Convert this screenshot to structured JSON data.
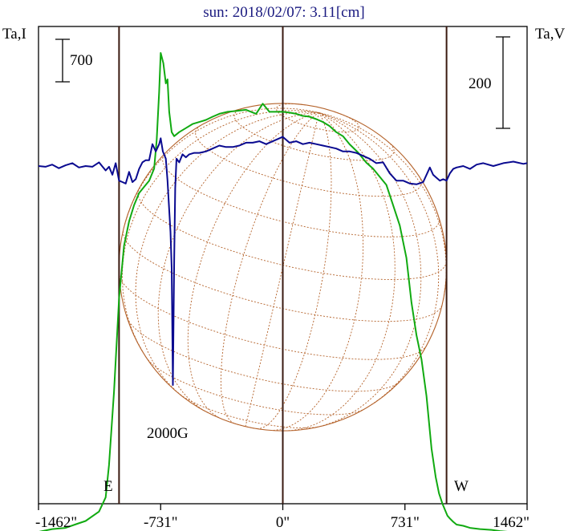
{
  "chart_data": {
    "type": "line",
    "title": "sun: 2018/02/07: 3.11[cm]",
    "left_axis_label": "Ta,I",
    "right_axis_label": "Ta,V",
    "x_ticks": [
      {
        "value": -1462,
        "label": "-1462\""
      },
      {
        "value": -731,
        "label": "-731\""
      },
      {
        "value": 0,
        "label": "0\""
      },
      {
        "value": 731,
        "label": "731\""
      },
      {
        "value": 1462,
        "label": "1462\""
      }
    ],
    "x_range": [
      -1462,
      1462
    ],
    "limb_arcsec": 980,
    "scale_bars": {
      "intensity": {
        "label": "700",
        "value": 700
      },
      "polarization": {
        "label": "200",
        "value": 200
      }
    },
    "markers": {
      "east": "E",
      "west": "W"
    },
    "annotation": {
      "text": "2000G",
      "x": -658
    },
    "colors": {
      "intensity": "#11aa11",
      "polarization": "#0a0a90",
      "grid": "#b4622a",
      "frame": "#000000",
      "title": "#1a1a80"
    },
    "series": [
      {
        "name": "Ta,I",
        "x": [
          -1462,
          -1380,
          -1300,
          -1230,
          -1180,
          -1100,
          -1060,
          -1040,
          -1010,
          -980,
          -950,
          -920,
          -890,
          -860,
          -830,
          -800,
          -770,
          -755,
          -740,
          -731,
          -715,
          -700,
          -690,
          -680,
          -665,
          -650,
          -620,
          -580,
          -540,
          -500,
          -460,
          -420,
          -380,
          -330,
          -280,
          -220,
          -160,
          -120,
          -80,
          -40,
          0,
          40,
          80,
          120,
          160,
          200,
          240,
          280,
          320,
          360,
          400,
          450,
          500,
          540,
          580,
          620,
          660,
          700,
          740,
          770,
          800,
          830,
          860,
          890,
          915,
          935,
          955,
          970,
          985,
          1000,
          1020,
          1040,
          1080,
          1120,
          1180,
          1250,
          1300,
          1350,
          1400,
          1462
        ],
        "y": [
          -105,
          -98,
          -95,
          -85,
          -78,
          -55,
          -20,
          60,
          240,
          470,
          600,
          660,
          700,
          730,
          745,
          760,
          790,
          860,
          980,
          1075,
          1050,
          1000,
          1010,
          930,
          880,
          870,
          880,
          890,
          900,
          905,
          910,
          918,
          925,
          930,
          932,
          935,
          925,
          950,
          930,
          930,
          930,
          928,
          925,
          920,
          918,
          912,
          905,
          895,
          880,
          870,
          850,
          830,
          805,
          790,
          770,
          750,
          700,
          650,
          570,
          460,
          380,
          320,
          230,
          100,
          30,
          -10,
          -35,
          -50,
          -65,
          -72,
          -80,
          -87,
          -90,
          -95,
          -98,
          -100,
          -103,
          -105,
          -107,
          -108
        ]
      },
      {
        "name": "Ta,V",
        "x": [
          -1462,
          -1420,
          -1380,
          -1340,
          -1300,
          -1260,
          -1220,
          -1180,
          -1140,
          -1100,
          -1060,
          -1040,
          -1020,
          -1000,
          -980,
          -960,
          -940,
          -920,
          -900,
          -880,
          -860,
          -840,
          -820,
          -800,
          -780,
          -760,
          -740,
          -731,
          -718,
          -700,
          -690,
          -680,
          -672,
          -665,
          -658,
          -650,
          -644,
          -636,
          -620,
          -600,
          -580,
          -560,
          -530,
          -500,
          -460,
          -420,
          -380,
          -340,
          -300,
          -260,
          -220,
          -180,
          -140,
          -100,
          -60,
          -20,
          0,
          40,
          80,
          120,
          160,
          200,
          240,
          280,
          320,
          360,
          400,
          440,
          480,
          520,
          560,
          600,
          640,
          680,
          720,
          760,
          800,
          840,
          880,
          900,
          920,
          940,
          960,
          980,
          1000,
          1020,
          1040,
          1080,
          1120,
          1160,
          1200,
          1260,
          1320,
          1380,
          1440,
          1462
        ],
        "y": [
          0,
          -1,
          2,
          -3,
          1,
          4,
          -2,
          0,
          -1,
          5,
          -6,
          -1,
          -12,
          4,
          -20,
          -22,
          -24,
          -8,
          -22,
          -18,
          -4,
          5,
          8,
          8,
          30,
          20,
          30,
          38,
          20,
          10,
          -20,
          -60,
          -90,
          -140,
          -300,
          -130,
          -30,
          10,
          5,
          16,
          12,
          16,
          18,
          18,
          20,
          24,
          28,
          26,
          26,
          28,
          32,
          32,
          34,
          30,
          34,
          38,
          40,
          32,
          34,
          30,
          32,
          30,
          28,
          26,
          24,
          20,
          20,
          18,
          14,
          10,
          4,
          5,
          -10,
          -20,
          -20,
          -24,
          -25,
          -22,
          -2,
          -12,
          -16,
          -20,
          -18,
          -20,
          -10,
          -4,
          -2,
          0,
          -4,
          2,
          4,
          0,
          4,
          6,
          3,
          4
        ]
      }
    ]
  }
}
